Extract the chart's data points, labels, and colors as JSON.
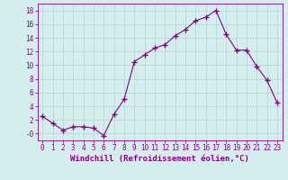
{
  "x": [
    0,
    1,
    2,
    3,
    4,
    5,
    6,
    7,
    8,
    9,
    10,
    11,
    12,
    13,
    14,
    15,
    16,
    17,
    18,
    19,
    20,
    21,
    22,
    23
  ],
  "y": [
    2.5,
    1.5,
    0.5,
    1.0,
    1.0,
    0.8,
    -0.3,
    2.8,
    5.0,
    10.5,
    11.5,
    12.5,
    13.0,
    14.3,
    15.2,
    16.5,
    17.0,
    18.0,
    14.5,
    12.2,
    12.2,
    9.8,
    7.8,
    4.5
  ],
  "line_color": "#880088",
  "marker": "+",
  "marker_size": 4,
  "background_color": "#d4eeee",
  "grid_color": "#b8d8d8",
  "xlabel": "Windchill (Refroidissement éolien,°C)",
  "ylim": [
    -1.0,
    19.0
  ],
  "xlim": [
    -0.5,
    23.5
  ],
  "yticks": [
    0,
    2,
    4,
    6,
    8,
    10,
    12,
    14,
    16,
    18
  ],
  "ytick_labels": [
    "-0",
    "2",
    "4",
    "6",
    "8",
    "10",
    "12",
    "14",
    "16",
    "18"
  ],
  "xticks": [
    0,
    1,
    2,
    3,
    4,
    5,
    6,
    7,
    8,
    9,
    10,
    11,
    12,
    13,
    14,
    15,
    16,
    17,
    18,
    19,
    20,
    21,
    22,
    23
  ],
  "font_color": "#880088",
  "tick_font_size": 5.5,
  "label_font_size": 6.5
}
